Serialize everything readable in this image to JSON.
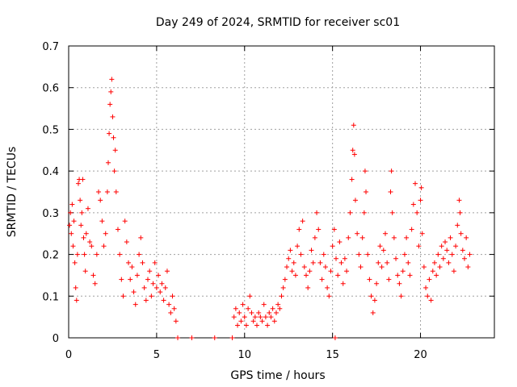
{
  "chart_data": {
    "type": "scatter",
    "title": "Day 249 of 2024, SRMTID for receiver sc01",
    "xlabel": "GPS time / hours",
    "ylabel": "SRMTID / TECUs",
    "xlim": [
      0,
      24.2
    ],
    "ylim": [
      0,
      0.7
    ],
    "xticks": [
      0,
      5,
      10,
      15,
      20
    ],
    "xtick_labels": [
      "0",
      "5",
      "10",
      "15",
      "20"
    ],
    "yticks": [
      0,
      0.1,
      0.2,
      0.3,
      0.4,
      0.5,
      0.6,
      0.7
    ],
    "ytick_labels": [
      "0",
      "0.1",
      "0.2",
      "0.3",
      "0.4",
      "0.5",
      "0.6",
      "0.7"
    ],
    "grid": true,
    "marker": "+",
    "colors": {
      "marker": "#ff0000",
      "grid": "#a0a0a0",
      "axis": "#000000"
    },
    "series": [
      {
        "name": "SRMTID",
        "points": [
          [
            0.05,
            0.27
          ],
          [
            0.1,
            0.3
          ],
          [
            0.15,
            0.25
          ],
          [
            0.2,
            0.32
          ],
          [
            0.25,
            0.22
          ],
          [
            0.3,
            0.28
          ],
          [
            0.35,
            0.18
          ],
          [
            0.4,
            0.12
          ],
          [
            0.45,
            0.09
          ],
          [
            0.5,
            0.2
          ],
          [
            0.55,
            0.37
          ],
          [
            0.6,
            0.38
          ],
          [
            0.65,
            0.33
          ],
          [
            0.7,
            0.27
          ],
          [
            0.75,
            0.3
          ],
          [
            0.8,
            0.38
          ],
          [
            0.85,
            0.24
          ],
          [
            0.9,
            0.2
          ],
          [
            0.95,
            0.16
          ],
          [
            1.0,
            0.25
          ],
          [
            1.1,
            0.31
          ],
          [
            1.2,
            0.23
          ],
          [
            1.3,
            0.22
          ],
          [
            1.4,
            0.15
          ],
          [
            1.5,
            0.13
          ],
          [
            1.6,
            0.2
          ],
          [
            1.7,
            0.35
          ],
          [
            1.8,
            0.33
          ],
          [
            1.9,
            0.28
          ],
          [
            2.0,
            0.22
          ],
          [
            2.1,
            0.25
          ],
          [
            2.2,
            0.35
          ],
          [
            2.25,
            0.42
          ],
          [
            2.3,
            0.49
          ],
          [
            2.35,
            0.56
          ],
          [
            2.4,
            0.59
          ],
          [
            2.45,
            0.62
          ],
          [
            2.5,
            0.53
          ],
          [
            2.55,
            0.48
          ],
          [
            2.6,
            0.4
          ],
          [
            2.65,
            0.45
          ],
          [
            2.7,
            0.35
          ],
          [
            2.8,
            0.26
          ],
          [
            2.9,
            0.2
          ],
          [
            3.0,
            0.14
          ],
          [
            3.1,
            0.1
          ],
          [
            3.2,
            0.28
          ],
          [
            3.3,
            0.23
          ],
          [
            3.4,
            0.18
          ],
          [
            3.5,
            0.14
          ],
          [
            3.6,
            0.17
          ],
          [
            3.7,
            0.11
          ],
          [
            3.8,
            0.08
          ],
          [
            3.9,
            0.15
          ],
          [
            4.0,
            0.2
          ],
          [
            4.1,
            0.24
          ],
          [
            4.2,
            0.18
          ],
          [
            4.3,
            0.12
          ],
          [
            4.4,
            0.09
          ],
          [
            4.5,
            0.14
          ],
          [
            4.6,
            0.16
          ],
          [
            4.7,
            0.1
          ],
          [
            4.8,
            0.13
          ],
          [
            4.9,
            0.18
          ],
          [
            5.0,
            0.12
          ],
          [
            5.1,
            0.15
          ],
          [
            5.2,
            0.11
          ],
          [
            5.3,
            0.13
          ],
          [
            5.4,
            0.09
          ],
          [
            5.5,
            0.12
          ],
          [
            5.6,
            0.16
          ],
          [
            5.7,
            0.08
          ],
          [
            5.8,
            0.06
          ],
          [
            5.9,
            0.1
          ],
          [
            6.0,
            0.07
          ],
          [
            6.1,
            0.04
          ],
          [
            6.2,
            0.0
          ],
          [
            7.0,
            0.0
          ],
          [
            8.3,
            0.0
          ],
          [
            9.3,
            0.0
          ],
          [
            9.4,
            0.05
          ],
          [
            9.5,
            0.07
          ],
          [
            9.6,
            0.03
          ],
          [
            9.7,
            0.06
          ],
          [
            9.8,
            0.04
          ],
          [
            9.9,
            0.08
          ],
          [
            10.0,
            0.05
          ],
          [
            10.1,
            0.03
          ],
          [
            10.2,
            0.07
          ],
          [
            10.3,
            0.1
          ],
          [
            10.4,
            0.06
          ],
          [
            10.5,
            0.04
          ],
          [
            10.6,
            0.05
          ],
          [
            10.7,
            0.03
          ],
          [
            10.8,
            0.06
          ],
          [
            10.9,
            0.05
          ],
          [
            11.0,
            0.04
          ],
          [
            11.1,
            0.08
          ],
          [
            11.2,
            0.05
          ],
          [
            11.3,
            0.03
          ],
          [
            11.4,
            0.06
          ],
          [
            11.5,
            0.05
          ],
          [
            11.6,
            0.07
          ],
          [
            11.7,
            0.04
          ],
          [
            11.8,
            0.06
          ],
          [
            11.9,
            0.08
          ],
          [
            12.0,
            0.07
          ],
          [
            12.1,
            0.1
          ],
          [
            12.2,
            0.12
          ],
          [
            12.3,
            0.14
          ],
          [
            12.4,
            0.17
          ],
          [
            12.5,
            0.19
          ],
          [
            12.6,
            0.21
          ],
          [
            12.7,
            0.16
          ],
          [
            12.8,
            0.18
          ],
          [
            12.9,
            0.15
          ],
          [
            13.0,
            0.22
          ],
          [
            13.1,
            0.26
          ],
          [
            13.2,
            0.2
          ],
          [
            13.3,
            0.28
          ],
          [
            13.4,
            0.17
          ],
          [
            13.5,
            0.15
          ],
          [
            13.6,
            0.12
          ],
          [
            13.7,
            0.16
          ],
          [
            13.8,
            0.21
          ],
          [
            13.9,
            0.18
          ],
          [
            14.0,
            0.24
          ],
          [
            14.1,
            0.3
          ],
          [
            14.2,
            0.26
          ],
          [
            14.3,
            0.18
          ],
          [
            14.4,
            0.14
          ],
          [
            14.5,
            0.2
          ],
          [
            14.6,
            0.17
          ],
          [
            14.7,
            0.12
          ],
          [
            14.8,
            0.1
          ],
          [
            14.9,
            0.16
          ],
          [
            15.0,
            0.22
          ],
          [
            15.1,
            0.26
          ],
          [
            15.15,
            0.0
          ],
          [
            15.2,
            0.19
          ],
          [
            15.3,
            0.15
          ],
          [
            15.4,
            0.23
          ],
          [
            15.5,
            0.18
          ],
          [
            15.6,
            0.13
          ],
          [
            15.7,
            0.19
          ],
          [
            15.8,
            0.16
          ],
          [
            15.9,
            0.24
          ],
          [
            16.0,
            0.3
          ],
          [
            16.1,
            0.38
          ],
          [
            16.15,
            0.45
          ],
          [
            16.2,
            0.51
          ],
          [
            16.25,
            0.44
          ],
          [
            16.3,
            0.33
          ],
          [
            16.4,
            0.25
          ],
          [
            16.5,
            0.2
          ],
          [
            16.6,
            0.17
          ],
          [
            16.7,
            0.24
          ],
          [
            16.8,
            0.3
          ],
          [
            16.85,
            0.4
          ],
          [
            16.9,
            0.35
          ],
          [
            17.0,
            0.2
          ],
          [
            17.1,
            0.14
          ],
          [
            17.2,
            0.1
          ],
          [
            17.3,
            0.06
          ],
          [
            17.4,
            0.09
          ],
          [
            17.5,
            0.13
          ],
          [
            17.6,
            0.18
          ],
          [
            17.7,
            0.22
          ],
          [
            17.8,
            0.17
          ],
          [
            17.9,
            0.21
          ],
          [
            18.0,
            0.25
          ],
          [
            18.1,
            0.18
          ],
          [
            18.2,
            0.14
          ],
          [
            18.3,
            0.35
          ],
          [
            18.35,
            0.4
          ],
          [
            18.4,
            0.3
          ],
          [
            18.5,
            0.24
          ],
          [
            18.6,
            0.19
          ],
          [
            18.7,
            0.15
          ],
          [
            18.8,
            0.13
          ],
          [
            18.9,
            0.1
          ],
          [
            19.0,
            0.16
          ],
          [
            19.1,
            0.2
          ],
          [
            19.2,
            0.24
          ],
          [
            19.3,
            0.18
          ],
          [
            19.4,
            0.15
          ],
          [
            19.5,
            0.26
          ],
          [
            19.6,
            0.32
          ],
          [
            19.7,
            0.37
          ],
          [
            19.8,
            0.3
          ],
          [
            19.9,
            0.22
          ],
          [
            20.0,
            0.33
          ],
          [
            20.05,
            0.36
          ],
          [
            20.1,
            0.25
          ],
          [
            20.2,
            0.17
          ],
          [
            20.3,
            0.12
          ],
          [
            20.4,
            0.1
          ],
          [
            20.5,
            0.14
          ],
          [
            20.6,
            0.09
          ],
          [
            20.7,
            0.16
          ],
          [
            20.8,
            0.18
          ],
          [
            20.9,
            0.15
          ],
          [
            21.0,
            0.2
          ],
          [
            21.1,
            0.17
          ],
          [
            21.2,
            0.22
          ],
          [
            21.3,
            0.19
          ],
          [
            21.4,
            0.23
          ],
          [
            21.5,
            0.21
          ],
          [
            21.6,
            0.18
          ],
          [
            21.7,
            0.24
          ],
          [
            21.8,
            0.2
          ],
          [
            21.9,
            0.16
          ],
          [
            22.0,
            0.22
          ],
          [
            22.1,
            0.27
          ],
          [
            22.2,
            0.33
          ],
          [
            22.25,
            0.3
          ],
          [
            22.3,
            0.25
          ],
          [
            22.4,
            0.21
          ],
          [
            22.5,
            0.19
          ],
          [
            22.6,
            0.24
          ],
          [
            22.7,
            0.17
          ],
          [
            22.8,
            0.2
          ]
        ]
      }
    ]
  }
}
